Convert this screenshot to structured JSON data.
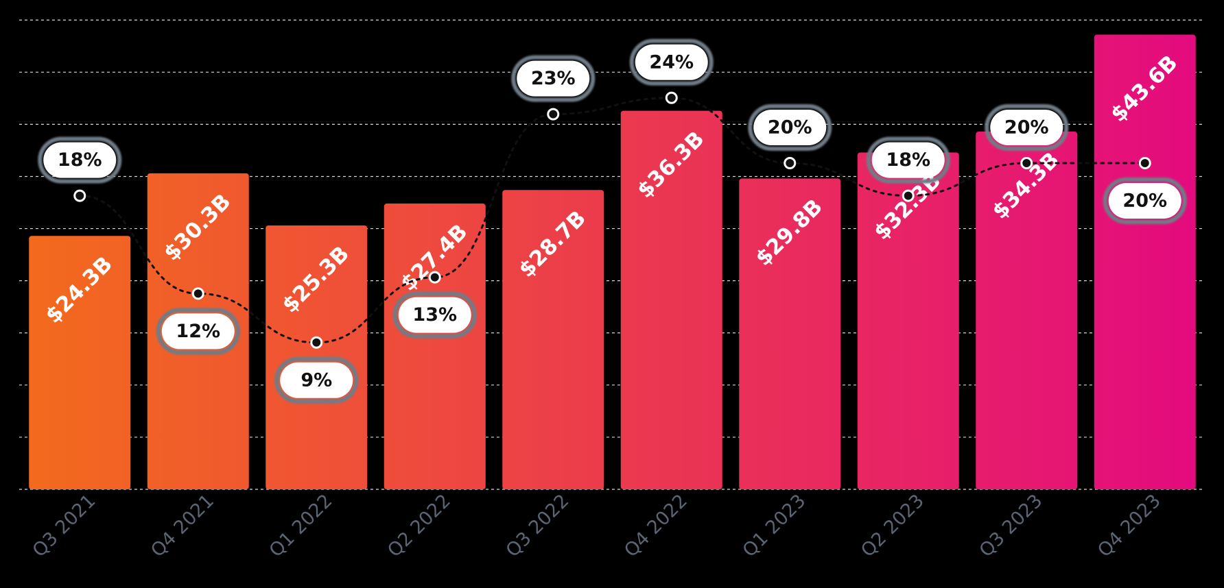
{
  "chart_data": {
    "type": "bar",
    "categories": [
      "Q3 2021",
      "Q4 2021",
      "Q1 2022",
      "Q2 2022",
      "Q3 2022",
      "Q4 2022",
      "Q1 2023",
      "Q2 2023",
      "Q3 2023",
      "Q4 2023"
    ],
    "series": [
      {
        "values": [
          24.3,
          30.3,
          25.3,
          27.4,
          28.7,
          36.3,
          29.8,
          32.3,
          34.3,
          43.6
        ],
        "labels": [
          "$24.3B",
          "$30.3B",
          "$25.3B",
          "$27.4B",
          "$28.7B",
          "$36.3B",
          "$29.8B",
          "$32.3B",
          "$34.3B",
          "$43.6B"
        ]
      },
      {
        "values": [
          18,
          12,
          9,
          13,
          23,
          24,
          20,
          18,
          20,
          20
        ],
        "labels": [
          "18%",
          "12%",
          "9%",
          "13%",
          "23%",
          "24%",
          "20%",
          "18%",
          "20%",
          "20%"
        ]
      }
    ],
    "ylim": [
      0,
      46
    ],
    "y2lim": [
      0,
      30
    ],
    "grid": true,
    "legend": "none",
    "title": "",
    "xlabel": "",
    "ylabel": ""
  },
  "colors": {
    "bar_start": "#f36b1c",
    "bar_end": "#e40a7f",
    "grid": "#d8d8d8",
    "tick_label": "#5b6573",
    "pill_outline": "#6f7c86",
    "pill_fill": "#ffffff",
    "line": "#111111"
  }
}
